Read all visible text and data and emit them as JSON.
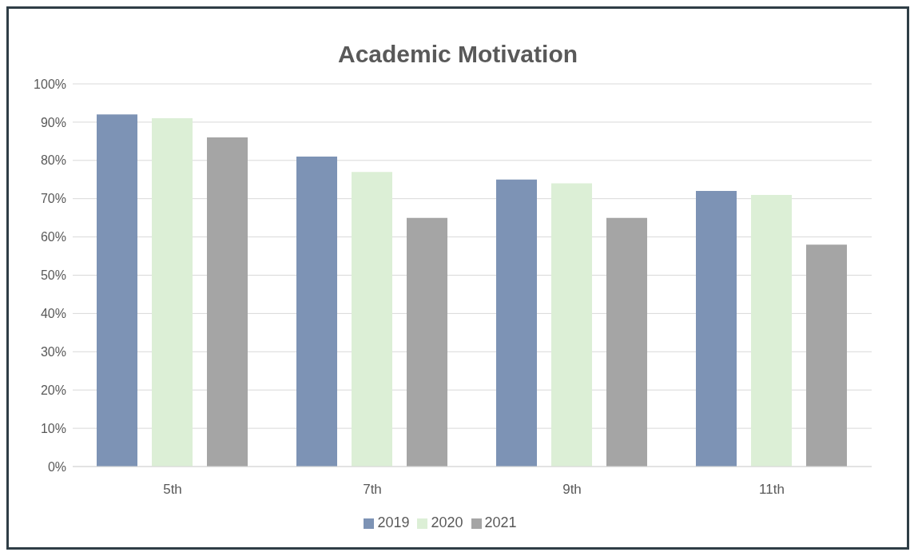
{
  "chart_data": {
    "type": "bar",
    "title": "Academic Motivation",
    "categories": [
      "5th",
      "7th",
      "9th",
      "11th"
    ],
    "series": [
      {
        "name": "2019",
        "color": "#7d93b5",
        "values": [
          92,
          81,
          75,
          72
        ]
      },
      {
        "name": "2020",
        "color": "#dcefd6",
        "values": [
          91,
          77,
          74,
          71
        ]
      },
      {
        "name": "2021",
        "color": "#a5a5a5",
        "values": [
          86,
          65,
          65,
          58
        ]
      }
    ],
    "ylim": [
      0,
      100
    ],
    "yticks": [
      {
        "value": 0,
        "label": "0%"
      },
      {
        "value": 10,
        "label": "10%"
      },
      {
        "value": 20,
        "label": "20%"
      },
      {
        "value": 30,
        "label": "30%"
      },
      {
        "value": 40,
        "label": "40%"
      },
      {
        "value": 50,
        "label": "50%"
      },
      {
        "value": 60,
        "label": "60%"
      },
      {
        "value": 70,
        "label": "70%"
      },
      {
        "value": 80,
        "label": "80%"
      },
      {
        "value": 90,
        "label": "90%"
      },
      {
        "value": 100,
        "label": "100%"
      }
    ],
    "grid": "y",
    "legend": "bottom"
  }
}
